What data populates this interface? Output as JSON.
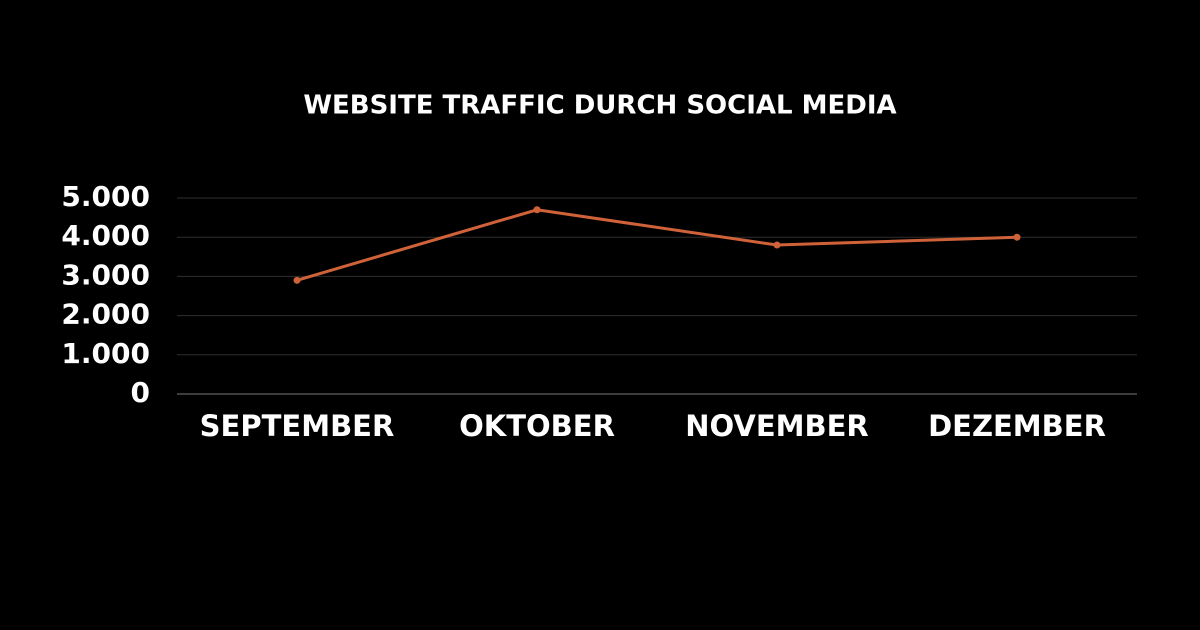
{
  "chart_data": {
    "type": "line",
    "title": "WEBSITE TRAFFIC DURCH SOCIAL MEDIA",
    "categories": [
      "SEPTEMBER",
      "OKTOBER",
      "NOVEMBER",
      "DEZEMBER"
    ],
    "values": [
      2900,
      4700,
      3800,
      4000
    ],
    "color": "#d0623a",
    "ylim": [
      0,
      5000
    ],
    "yticks": [
      0,
      {
        "value": 1000,
        "label": "1.000"
      },
      {
        "value": 2000,
        "label": "2.000"
      },
      {
        "value": 3000,
        "label": "3.000"
      },
      {
        "value": 4000,
        "label": "4.000"
      },
      {
        "value": 5000,
        "label": "5.000"
      }
    ],
    "grid": true
  }
}
